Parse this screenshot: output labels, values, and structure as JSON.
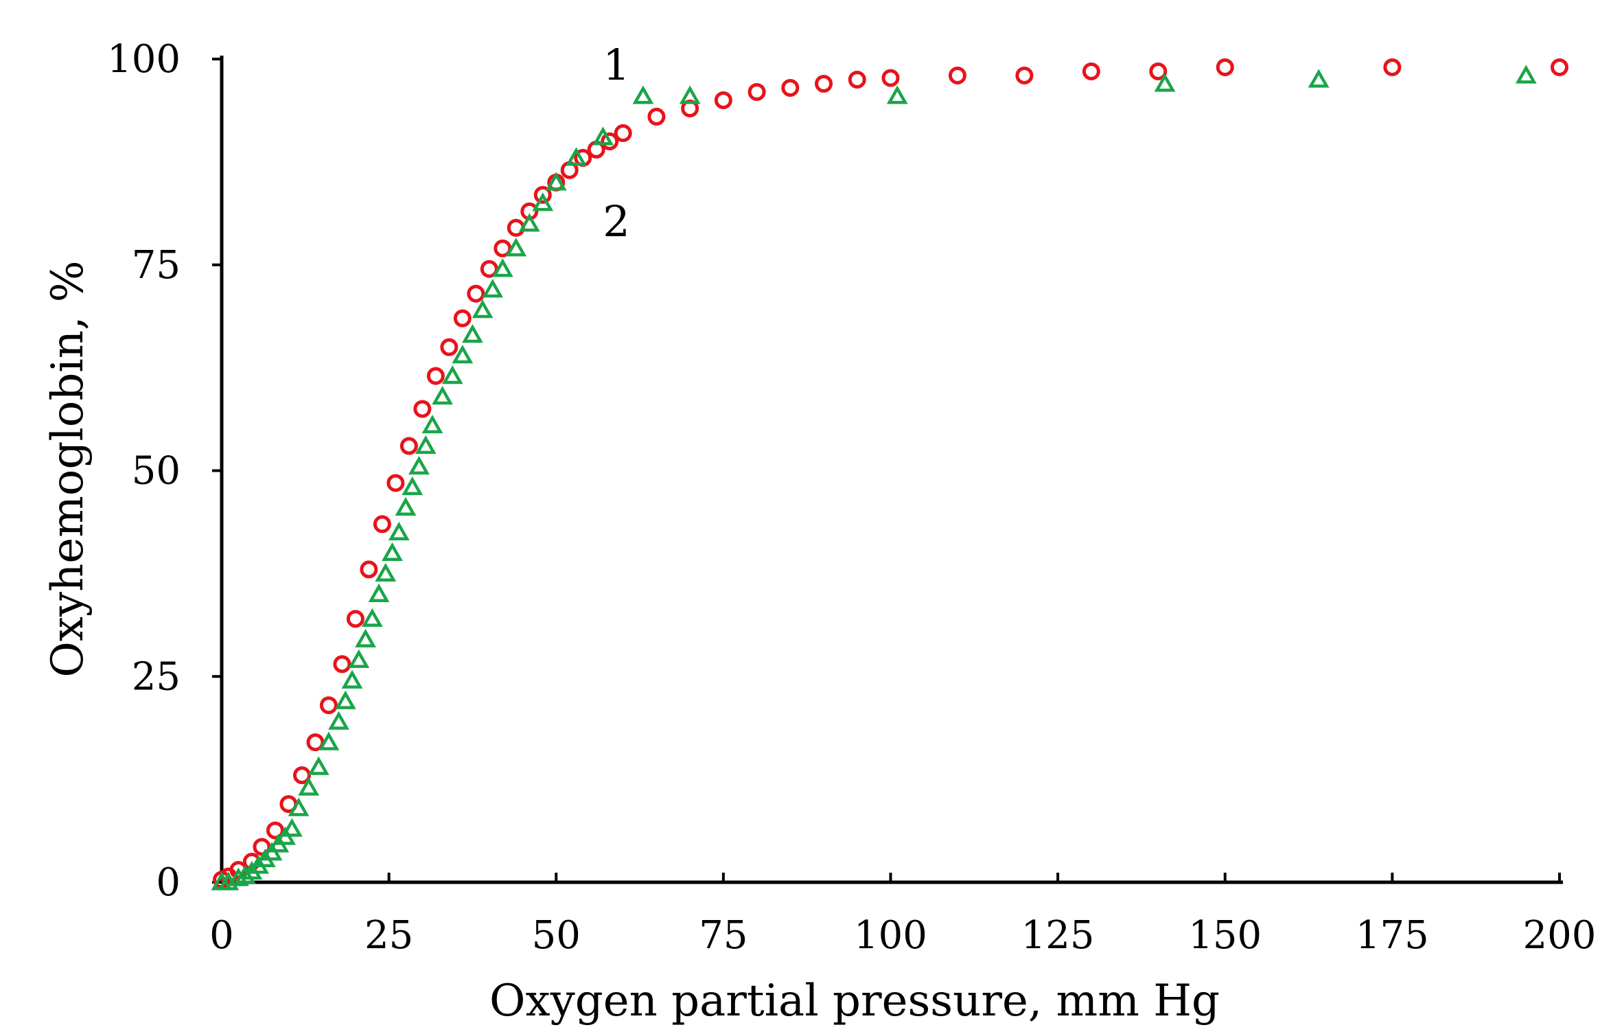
{
  "chart_data": {
    "type": "scatter",
    "title": "",
    "xlabel": "Oxygen partial pressure, mm Hg",
    "ylabel": "Oxyhemoglobin, %",
    "xlim": [
      0,
      200
    ],
    "ylim": [
      0,
      100
    ],
    "xticks": [
      0,
      25,
      50,
      75,
      100,
      125,
      150,
      175,
      200
    ],
    "yticks": [
      0,
      25,
      50,
      75,
      100
    ],
    "xtick_labels": [
      "0",
      "25",
      "50",
      "75",
      "100",
      "125",
      "150",
      "175",
      "200"
    ],
    "ytick_labels": [
      "0",
      "25",
      "50",
      "75",
      "100"
    ],
    "grid": false,
    "annotations": [
      {
        "text": "1",
        "series": "1",
        "x": 59,
        "y": 97.5
      },
      {
        "text": "2",
        "series": "2",
        "x": 59,
        "y": 78.5
      }
    ],
    "series": [
      {
        "name": "1",
        "marker": "circle",
        "color": "#e8131b",
        "points": [
          [
            0,
            0.3
          ],
          [
            1,
            0.7
          ],
          [
            2.5,
            1.5
          ],
          [
            4.5,
            2.5
          ],
          [
            6,
            4.3
          ],
          [
            8,
            6.3
          ],
          [
            10,
            9.5
          ],
          [
            12,
            13
          ],
          [
            14,
            17
          ],
          [
            16,
            21.5
          ],
          [
            18,
            26.5
          ],
          [
            20,
            32
          ],
          [
            22,
            38
          ],
          [
            24,
            43.5
          ],
          [
            26,
            48.5
          ],
          [
            28,
            53
          ],
          [
            30,
            57.5
          ],
          [
            32,
            61.5
          ],
          [
            34,
            65
          ],
          [
            36,
            68.5
          ],
          [
            38,
            71.5
          ],
          [
            40,
            74.5
          ],
          [
            42,
            77
          ],
          [
            44,
            79.5
          ],
          [
            46,
            81.5
          ],
          [
            48,
            83.5
          ],
          [
            50,
            85
          ],
          [
            52,
            86.5
          ],
          [
            54,
            88
          ],
          [
            56,
            89
          ],
          [
            58,
            90
          ],
          [
            60,
            91
          ],
          [
            65,
            93
          ],
          [
            70,
            94
          ],
          [
            75,
            95
          ],
          [
            80,
            96
          ],
          [
            85,
            96.5
          ],
          [
            90,
            97
          ],
          [
            95,
            97.5
          ],
          [
            100,
            97.7
          ],
          [
            110,
            98
          ],
          [
            120,
            98
          ],
          [
            130,
            98.5
          ],
          [
            140,
            98.5
          ],
          [
            150,
            99
          ],
          [
            175,
            99
          ],
          [
            200,
            99
          ]
        ]
      },
      {
        "name": "2",
        "marker": "triangle",
        "color": "#1aa549",
        "points": [
          [
            0,
            0
          ],
          [
            1,
            0
          ],
          [
            2.5,
            0.5
          ],
          [
            3.5,
            0.8
          ],
          [
            4.5,
            1.3
          ],
          [
            5.5,
            2
          ],
          [
            6.5,
            2.8
          ],
          [
            7.5,
            3.6
          ],
          [
            8.5,
            4.6
          ],
          [
            9.5,
            5.5
          ],
          [
            10.5,
            6.5
          ],
          [
            11.5,
            9
          ],
          [
            13,
            11.5
          ],
          [
            14.5,
            14
          ],
          [
            16,
            17
          ],
          [
            17.5,
            19.5
          ],
          [
            18.5,
            22
          ],
          [
            19.5,
            24.5
          ],
          [
            20.5,
            27
          ],
          [
            21.5,
            29.5
          ],
          [
            22.5,
            32
          ],
          [
            23.5,
            35
          ],
          [
            24.5,
            37.5
          ],
          [
            25.5,
            40
          ],
          [
            26.5,
            42.5
          ],
          [
            27.5,
            45.5
          ],
          [
            28.5,
            48
          ],
          [
            29.5,
            50.5
          ],
          [
            30.5,
            53
          ],
          [
            31.5,
            55.5
          ],
          [
            33,
            59
          ],
          [
            34.5,
            61.5
          ],
          [
            36,
            64
          ],
          [
            37.5,
            66.5
          ],
          [
            39,
            69.5
          ],
          [
            40.5,
            72
          ],
          [
            42,
            74.5
          ],
          [
            44,
            77
          ],
          [
            46,
            80
          ],
          [
            48,
            82.5
          ],
          [
            50,
            85
          ],
          [
            53,
            88
          ],
          [
            57,
            90.5
          ],
          [
            63,
            95.5
          ],
          [
            70,
            95.5
          ],
          [
            101,
            95.5
          ],
          [
            141,
            97
          ],
          [
            164,
            97.5
          ],
          [
            195,
            98
          ]
        ]
      }
    ]
  }
}
